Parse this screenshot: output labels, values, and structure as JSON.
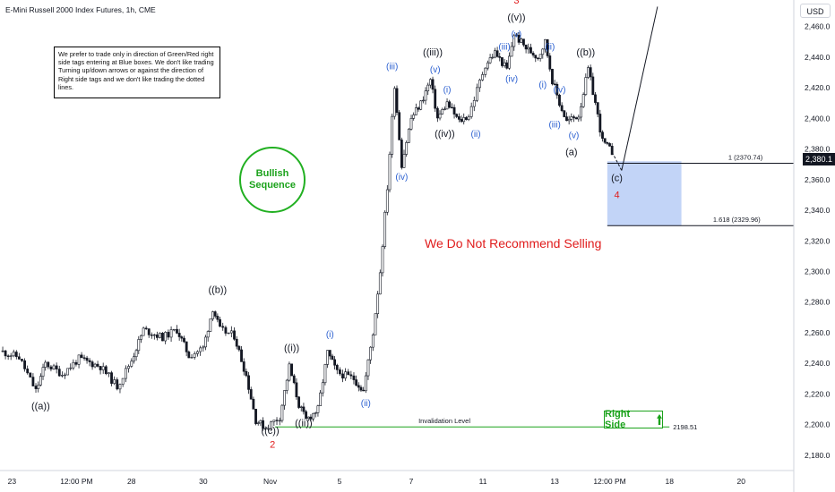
{
  "header": {
    "title": "E-Mini Russell 2000 Index Futures, 1h, CME",
    "currency": "USD"
  },
  "note": "We prefer to trade only in direction of Green/Red right side tags entering at Blue boxes. We don't like trading Turning up/down arrows or against the direction of Right side tags and we don't like trading the dotted lines.",
  "bullish_label": [
    "Bullish",
    "Sequence"
  ],
  "no_sell_text": "We Do Not Recommend Selling",
  "right_side_label": "Right Side",
  "current_price": "2,380.1",
  "colors": {
    "green": "#1ba21b",
    "red": "#e01b1b",
    "blue_label": "#2a5fd0",
    "box": "#aec6f4",
    "candle": "#131722"
  },
  "chart_data": {
    "type": "candlestick",
    "y_ticks": [
      2180,
      2200,
      2220,
      2240,
      2260,
      2280,
      2300,
      2320,
      2340,
      2360,
      2380,
      2400,
      2420,
      2440,
      2460
    ],
    "y_tick_labels": [
      "2,180.0",
      "2,200.0",
      "2,220.0",
      "2,240.0",
      "2,260.0",
      "2,280.0",
      "2,300.0",
      "2,320.0",
      "2,340.0",
      "2,360.0",
      "2,380.0",
      "2,400.0",
      "2,420.0",
      "2,440.0",
      "2,460.0"
    ],
    "ylim": [
      2170,
      2475
    ],
    "x_ticks": [
      {
        "label": "23",
        "x": 0.5
      },
      {
        "label": "12:00 PM",
        "x": 3.2
      },
      {
        "label": "28",
        "x": 5.5
      },
      {
        "label": "30",
        "x": 8.5
      },
      {
        "label": "Nov",
        "x": 11.3
      },
      {
        "label": "5",
        "x": 14.2
      },
      {
        "label": "7",
        "x": 17.2
      },
      {
        "label": "11",
        "x": 20.2
      },
      {
        "label": "13",
        "x": 23.2
      },
      {
        "label": "12:00 PM",
        "x": 25.5
      },
      {
        "label": "18",
        "x": 28.0
      },
      {
        "label": "20",
        "x": 31.0
      }
    ],
    "xlim": [
      0,
      33.2
    ],
    "path": [
      [
        0,
        2248
      ],
      [
        0.8,
        2244
      ],
      [
        1.5,
        2222
      ],
      [
        1.9,
        2240
      ],
      [
        2.6,
        2233
      ],
      [
        3.3,
        2243
      ],
      [
        4.2,
        2238
      ],
      [
        4.9,
        2225
      ],
      [
        5.5,
        2242
      ],
      [
        6,
        2262
      ],
      [
        6.8,
        2257
      ],
      [
        7.4,
        2262
      ],
      [
        7.9,
        2245
      ],
      [
        8.5,
        2250
      ],
      [
        8.9,
        2276
      ],
      [
        9.2,
        2262
      ],
      [
        9.8,
        2258
      ],
      [
        10.3,
        2232
      ],
      [
        10.7,
        2203
      ],
      [
        11.1,
        2198
      ],
      [
        11.7,
        2205
      ],
      [
        12.1,
        2238
      ],
      [
        12.5,
        2213
      ],
      [
        12.8,
        2203
      ],
      [
        13.3,
        2210
      ],
      [
        13.7,
        2247
      ],
      [
        14.1,
        2234
      ],
      [
        14.8,
        2230
      ],
      [
        15.2,
        2222
      ],
      [
        15.6,
        2260
      ],
      [
        15.9,
        2300
      ],
      [
        16.2,
        2355
      ],
      [
        16.5,
        2422
      ],
      [
        16.8,
        2370
      ],
      [
        17.2,
        2400
      ],
      [
        17.6,
        2410
      ],
      [
        18,
        2425
      ],
      [
        18.3,
        2400
      ],
      [
        18.7,
        2410
      ],
      [
        19.2,
        2398
      ],
      [
        19.6,
        2402
      ],
      [
        20.3,
        2435
      ],
      [
        20.7,
        2443
      ],
      [
        21.2,
        2432
      ],
      [
        21.5,
        2455
      ],
      [
        22,
        2446
      ],
      [
        22.5,
        2440
      ],
      [
        22.8,
        2450
      ],
      [
        23.1,
        2425
      ],
      [
        23.4,
        2410
      ],
      [
        23.7,
        2398
      ],
      [
        24.2,
        2402
      ],
      [
        24.6,
        2432
      ],
      [
        24.9,
        2410
      ],
      [
        25.2,
        2385
      ],
      [
        25.6,
        2378
      ]
    ],
    "projection": [
      [
        25.6,
        2378
      ],
      [
        26,
        2366
      ]
    ],
    "forecast_line": [
      [
        26,
        2366
      ],
      [
        27.5,
        2473
      ]
    ],
    "blue_box": {
      "x0": 25.4,
      "x1": 28.5,
      "y_top": 2372,
      "y_bottom": 2330
    },
    "fib_levels": [
      {
        "label": "1 (2370.74)",
        "value": 2370.74,
        "x0": 25.4,
        "x1": 33.2
      },
      {
        "label": "1.618 (2329.96)",
        "value": 2329.96,
        "x0": 25.4,
        "x1": 33.2
      }
    ],
    "invalidation": {
      "label": "Invalidation Level",
      "value": 2198.51,
      "value_label": "2198.51",
      "x0": 11.5,
      "x1": 28.0
    },
    "wave_labels": [
      {
        "text": "((a))",
        "x": 1.7,
        "y": 2210,
        "color": "black"
      },
      {
        "text": "((b))",
        "x": 9.1,
        "y": 2286,
        "color": "black"
      },
      {
        "text": "((c))",
        "x": 11.3,
        "y": 2194,
        "color": "black"
      },
      {
        "text": "2",
        "x": 11.4,
        "y": 2185,
        "color": "red"
      },
      {
        "text": "((i))",
        "x": 12.2,
        "y": 2248,
        "color": "black"
      },
      {
        "text": "((ii))",
        "x": 12.7,
        "y": 2199,
        "color": "black"
      },
      {
        "text": "(i)",
        "x": 13.8,
        "y": 2257,
        "color": "blue"
      },
      {
        "text": "(ii)",
        "x": 15.3,
        "y": 2212,
        "color": "blue"
      },
      {
        "text": "(iii)",
        "x": 16.4,
        "y": 2432,
        "color": "blue"
      },
      {
        "text": "(iv)",
        "x": 16.8,
        "y": 2360,
        "color": "blue"
      },
      {
        "text": "((iii))",
        "x": 18.1,
        "y": 2441,
        "color": "black"
      },
      {
        "text": "(v)",
        "x": 18.2,
        "y": 2430,
        "color": "blue"
      },
      {
        "text": "(i)",
        "x": 18.7,
        "y": 2417,
        "color": "blue"
      },
      {
        "text": "((iv))",
        "x": 18.6,
        "y": 2388,
        "color": "black"
      },
      {
        "text": "(ii)",
        "x": 19.9,
        "y": 2388,
        "color": "blue"
      },
      {
        "text": "3",
        "x": 21.6,
        "y": 2475,
        "color": "red"
      },
      {
        "text": "((v))",
        "x": 21.6,
        "y": 2464,
        "color": "black"
      },
      {
        "text": "(v)",
        "x": 21.6,
        "y": 2453,
        "color": "blue"
      },
      {
        "text": "(iii)",
        "x": 21.1,
        "y": 2445,
        "color": "blue"
      },
      {
        "text": "(iv)",
        "x": 21.4,
        "y": 2424,
        "color": "blue"
      },
      {
        "text": "(ii)",
        "x": 23.0,
        "y": 2445,
        "color": "blue"
      },
      {
        "text": "(i)",
        "x": 22.7,
        "y": 2420,
        "color": "blue"
      },
      {
        "text": "(iv)",
        "x": 23.4,
        "y": 2417,
        "color": "blue"
      },
      {
        "text": "(iii)",
        "x": 23.2,
        "y": 2394,
        "color": "blue"
      },
      {
        "text": "(v)",
        "x": 24.0,
        "y": 2387,
        "color": "blue"
      },
      {
        "text": "(a)",
        "x": 23.9,
        "y": 2376,
        "color": "black"
      },
      {
        "text": "((b))",
        "x": 24.5,
        "y": 2441,
        "color": "black"
      },
      {
        "text": "(c)",
        "x": 25.8,
        "y": 2359,
        "color": "black"
      },
      {
        "text": "4",
        "x": 25.8,
        "y": 2348,
        "color": "red"
      }
    ]
  }
}
